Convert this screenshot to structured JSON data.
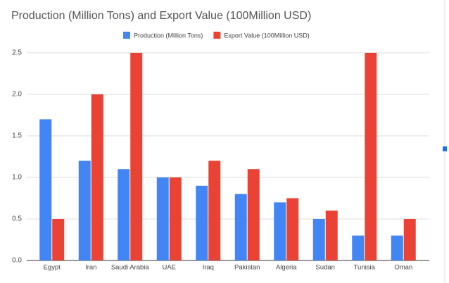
{
  "chart_data": {
    "type": "bar",
    "title": "Production (Million Tons) and Export Value (100Million USD)",
    "categories": [
      "Egypt",
      "Iran",
      "Saudi Arabia",
      "UAE",
      "Iraq",
      "Pakistan",
      "Algeria",
      "Sudan",
      "Tunisia",
      "Oman"
    ],
    "series": [
      {
        "name": "Production (Million Tons)",
        "color": "#4285f4",
        "values": [
          1.7,
          1.2,
          1.1,
          1.0,
          0.9,
          0.8,
          0.7,
          0.5,
          0.3,
          0.3
        ]
      },
      {
        "name": "Export Value (100Million USD)",
        "color": "#ea4335",
        "values": [
          0.5,
          2.0,
          2.5,
          1.0,
          1.2,
          1.1,
          0.75,
          0.6,
          2.5,
          0.5
        ]
      }
    ],
    "ylim": [
      0,
      2.5
    ],
    "yticks": [
      {
        "value": 0,
        "label": "0.0"
      },
      0.5,
      {
        "value": 1,
        "label": "1.0"
      },
      1.5,
      {
        "value": 2,
        "label": "2.0"
      },
      2.5
    ],
    "grid": true,
    "legend": "top"
  }
}
